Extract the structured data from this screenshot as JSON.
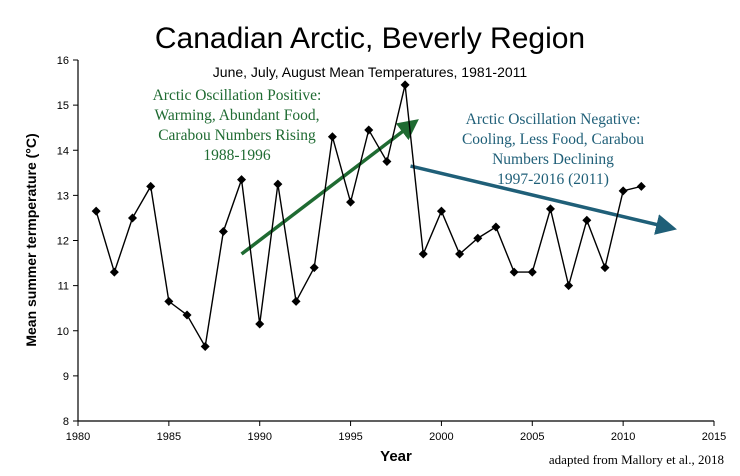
{
  "chart_data": {
    "type": "line",
    "title": "Canadian Arctic, Beverly Region",
    "subtitle": "June, July, August Mean Temperatures, 1981-2011",
    "xlabel": "Year",
    "ylabel": "Mean summer termperature (°C)",
    "xlim": [
      1980,
      2015
    ],
    "ylim": [
      8,
      16
    ],
    "xticks": [
      1980,
      1985,
      1990,
      1995,
      2000,
      2005,
      2010,
      2015
    ],
    "yticks": [
      8,
      9,
      10,
      11,
      12,
      13,
      14,
      15,
      16
    ],
    "grid": false,
    "series": [
      {
        "x": [
          1981,
          1982,
          1983,
          1984,
          1985,
          1986,
          1987,
          1988,
          1989,
          1990,
          1991,
          1992,
          1993,
          1994,
          1995,
          1996,
          1997,
          1998,
          1999,
          2000,
          2001,
          2002,
          2003,
          2004,
          2005,
          2006,
          2007,
          2008,
          2009,
          2010,
          2011
        ],
        "y": [
          12.65,
          11.3,
          12.5,
          13.2,
          10.65,
          10.35,
          9.65,
          12.2,
          13.35,
          10.15,
          13.25,
          10.65,
          11.4,
          14.3,
          12.85,
          14.45,
          13.75,
          15.45,
          11.7,
          12.65,
          11.7,
          12.05,
          12.3,
          11.3,
          11.3,
          12.7,
          11.0,
          12.45,
          11.4,
          13.1,
          13.2
        ],
        "color": "#000000",
        "marker": "diamond"
      }
    ],
    "annotations": [
      {
        "lines": [
          "Arctic Oscillation Positive:",
          "Warming, Abundant Food,",
          "Carabou Numbers Rising",
          "1988-1996"
        ],
        "color": "#1f6b32",
        "arrow": {
          "from": [
            1989,
            11.7
          ],
          "to": [
            1998.3,
            14.55
          ]
        }
      },
      {
        "lines": [
          "Arctic Oscillation Negative:",
          "Cooling, Less Food, Carabou",
          "Numbers Declining",
          "1997-2016 (2011)"
        ],
        "color": "#1f5f78",
        "arrow": {
          "from": [
            1998.3,
            13.65
          ],
          "to": [
            2012.4,
            12.3
          ]
        }
      }
    ],
    "credit": "adapted from Mallory et al., 2018"
  }
}
